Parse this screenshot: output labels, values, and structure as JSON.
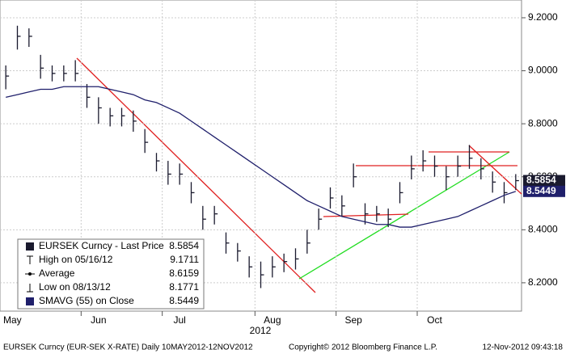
{
  "chart_data": {
    "type": "ohlc",
    "categories": [
      "May",
      null,
      null,
      null,
      null,
      null,
      null,
      null,
      "Jun",
      null,
      null,
      null,
      null,
      null,
      null,
      "Jul",
      null,
      null,
      null,
      null,
      null,
      null,
      null,
      "Aug",
      null,
      null,
      null,
      null,
      null,
      null,
      "Sep",
      null,
      null,
      null,
      null,
      null,
      null,
      "Oct",
      null,
      null,
      null,
      null,
      null,
      null,
      null
    ],
    "x_label": "2012",
    "series": [
      {
        "name": "EURSEK Curncy - Last Price",
        "color": "#1a1a2e",
        "values": [
          8.98,
          9.13,
          9.13,
          9.01,
          8.99,
          8.99,
          8.99,
          8.9,
          8.86,
          8.83,
          8.83,
          8.81,
          8.73,
          8.66,
          8.61,
          8.61,
          8.54,
          8.44,
          8.46,
          8.35,
          8.32,
          8.26,
          8.23,
          8.26,
          8.28,
          8.29,
          8.35,
          8.44,
          8.52,
          8.49,
          8.6,
          8.46,
          8.46,
          8.44,
          8.54,
          8.63,
          8.66,
          8.64,
          8.6,
          8.64,
          8.67,
          8.63,
          8.58,
          8.54,
          8.5854
        ],
        "high": [
          9.02,
          9.17,
          9.16,
          9.06,
          9.02,
          9.02,
          9.04,
          8.95,
          8.9,
          8.86,
          8.86,
          8.85,
          8.78,
          8.69,
          8.66,
          8.65,
          8.58,
          8.49,
          8.49,
          8.39,
          8.35,
          8.3,
          8.28,
          8.3,
          8.31,
          8.33,
          8.4,
          8.48,
          8.56,
          8.53,
          8.65,
          8.5,
          8.49,
          8.48,
          8.58,
          8.68,
          8.7,
          8.68,
          8.64,
          8.68,
          8.72,
          8.67,
          8.62,
          8.58,
          8.61
        ],
        "low": [
          8.93,
          9.08,
          9.09,
          8.97,
          8.96,
          8.96,
          8.96,
          8.86,
          8.8,
          8.79,
          8.79,
          8.77,
          8.69,
          8.62,
          8.57,
          8.57,
          8.5,
          8.4,
          8.42,
          8.31,
          8.28,
          8.22,
          8.18,
          8.22,
          8.24,
          8.25,
          8.31,
          8.4,
          8.48,
          8.45,
          8.56,
          8.42,
          8.43,
          8.41,
          8.5,
          8.59,
          8.62,
          8.6,
          8.55,
          8.6,
          8.63,
          8.59,
          8.54,
          8.5,
          8.55
        ]
      },
      {
        "name": "SMAVG (55) on Close",
        "color": "#1f1f6b",
        "values": [
          8.9,
          8.91,
          8.92,
          8.93,
          8.93,
          8.94,
          8.94,
          8.94,
          8.94,
          8.93,
          8.92,
          8.91,
          8.89,
          8.88,
          8.86,
          8.84,
          8.81,
          8.78,
          8.75,
          8.72,
          8.69,
          8.66,
          8.63,
          8.6,
          8.57,
          8.54,
          8.51,
          8.49,
          8.47,
          8.45,
          8.44,
          8.43,
          8.42,
          8.42,
          8.41,
          8.41,
          8.42,
          8.43,
          8.44,
          8.45,
          8.47,
          8.49,
          8.51,
          8.53,
          8.5449
        ]
      }
    ],
    "ylim": [
      8.093,
      9.267
    ],
    "yticks": [
      {
        "value": 8.2,
        "label": "8.2000"
      },
      {
        "value": 8.4,
        "label": "8.4000"
      },
      {
        "value": 8.6,
        "label": "8.6000"
      },
      {
        "value": 8.8,
        "label": "8.8000"
      },
      {
        "value": 9.0,
        "label": "9.0000"
      },
      {
        "value": 9.2,
        "label": "9.2000"
      }
    ],
    "grid": true,
    "legend": [
      {
        "label": "EURSEK Curncy - Last Price",
        "value": 8.5854
      },
      {
        "label": "High on 05/16/12",
        "value": 9.1711
      },
      {
        "label": "Average",
        "value": 8.6159
      },
      {
        "label": "Low on 08/13/12",
        "value": 8.1771
      },
      {
        "label": "SMAVG (55) on Close",
        "value": 8.5449
      }
    ],
    "footer": {
      "left": "EURSEK Curncy (EUR-SEK X-RATE) Daily 10MAY2012-12NOV2012",
      "center": "Copyright© 2012 Bloomberg Finance L.P.",
      "right": "12-Nov-2012 09:43:18"
    }
  }
}
